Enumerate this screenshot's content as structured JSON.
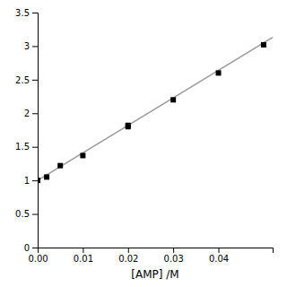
{
  "chart_data": {
    "type": "scatter",
    "xlabel": "[AMP] /M",
    "xlim": [
      0,
      0.052
    ],
    "ylim": [
      0,
      3.5
    ],
    "xticks": [
      {
        "value": 0,
        "label": "0.00"
      },
      0.01,
      0.02,
      0.03,
      0.04
    ],
    "yticks": [
      0,
      0.5,
      1,
      1.5,
      2,
      2.5,
      3,
      3.5
    ],
    "series": [
      {
        "type": "scatter",
        "marker": "square",
        "color": "black",
        "x": [
          0.0,
          0.002,
          0.005,
          0.01,
          0.02,
          0.02,
          0.03,
          0.04,
          0.05
        ],
        "values": [
          1.0,
          1.05,
          1.22,
          1.37,
          1.8,
          1.82,
          2.2,
          2.6,
          3.02
        ]
      },
      {
        "type": "line",
        "color": "#999999",
        "x": [
          0.0,
          0.052
        ],
        "values": [
          1.0,
          3.132
        ]
      }
    ]
  }
}
